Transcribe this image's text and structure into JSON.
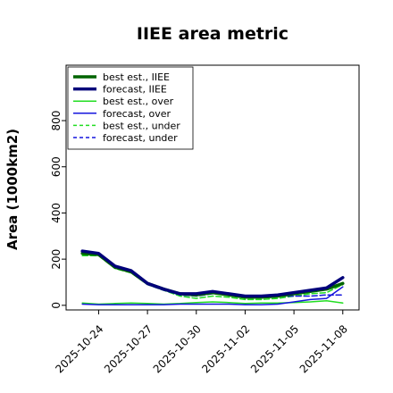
{
  "chart_data": {
    "type": "line",
    "title": "IIEE area metric",
    "xlabel": "",
    "ylabel": "Area (1000km2)",
    "x": [
      "2025-10-23",
      "2025-10-24",
      "2025-10-25",
      "2025-10-26",
      "2025-10-27",
      "2025-10-28",
      "2025-10-29",
      "2025-10-30",
      "2025-10-31",
      "2025-11-01",
      "2025-11-02",
      "2025-11-03",
      "2025-11-04",
      "2025-11-05",
      "2025-11-06",
      "2025-11-07",
      "2025-11-08"
    ],
    "xticks": [
      "2025-10-24",
      "2025-10-27",
      "2025-10-30",
      "2025-11-02",
      "2025-11-05",
      "2025-11-08"
    ],
    "highlight_tick": "2025-10-30",
    "highlight_color": "#228B22",
    "xlim": [
      "2025-10-22",
      "2025-11-09"
    ],
    "ylim": [
      -20,
      1040
    ],
    "yticks": [
      0,
      200,
      400,
      600,
      800
    ],
    "grid": false,
    "legend_position": "top-left",
    "series": [
      {
        "name": "best est., IIEE",
        "color": "#006400",
        "width": 3.5,
        "dash": "solid",
        "values": [
          null,
          null,
          null,
          null,
          null,
          null,
          null,
          null,
          null,
          null,
          null,
          null,
          null,
          null,
          null,
          null,
          null
        ],
        "segments": [
          {
            "x": [
              "2025-10-23",
              "2025-10-24",
              "2025-10-25",
              "2025-10-26",
              "2025-10-27",
              "2025-10-28",
              "2025-10-29",
              "2025-10-30"
            ],
            "y": [
              225,
              220,
              165,
              145,
              95,
              70,
              50,
              45
            ]
          },
          {
            "x": [
              "2025-10-30",
              "2025-10-31",
              "2025-11-01",
              "2025-11-02",
              "2025-11-03",
              "2025-11-04",
              "2025-11-05",
              "2025-11-06",
              "2025-11-07",
              "2025-11-08"
            ],
            "y": [
              45,
              55,
              45,
              35,
              35,
              40,
              50,
              60,
              70,
              95
            ]
          }
        ]
      },
      {
        "name": "forecast, IIEE",
        "color": "#00007a",
        "width": 3.5,
        "dash": "solid",
        "segments": [
          {
            "x": [
              "2025-10-23",
              "2025-10-24",
              "2025-10-25",
              "2025-10-26",
              "2025-10-27",
              "2025-10-28",
              "2025-10-29",
              "2025-10-30",
              "2025-10-31",
              "2025-11-01",
              "2025-11-02",
              "2025-11-03",
              "2025-11-04",
              "2025-11-05",
              "2025-11-06",
              "2025-11-07",
              "2025-11-08"
            ],
            "y": [
              235,
              225,
              170,
              150,
              95,
              70,
              50,
              50,
              60,
              50,
              40,
              40,
              45,
              55,
              65,
              75,
              120
            ]
          }
        ]
      },
      {
        "name": "best est., over",
        "color": "#22dd22",
        "width": 1.5,
        "dash": "solid",
        "segments": [
          {
            "x": [
              "2025-10-23",
              "2025-10-24",
              "2025-10-25",
              "2025-10-26",
              "2025-10-27",
              "2025-10-28",
              "2025-10-29",
              "2025-10-30",
              "2025-10-31",
              "2025-11-01",
              "2025-11-02",
              "2025-11-03",
              "2025-11-04",
              "2025-11-05",
              "2025-11-06",
              "2025-11-07",
              "2025-11-08"
            ],
            "y": [
              10,
              5,
              8,
              10,
              8,
              5,
              8,
              12,
              15,
              12,
              8,
              10,
              10,
              12,
              15,
              20,
              10
            ]
          }
        ]
      },
      {
        "name": "forecast, over",
        "color": "#1515dd",
        "width": 1.5,
        "dash": "solid",
        "segments": [
          {
            "x": [
              "2025-10-23",
              "2025-10-24",
              "2025-10-25",
              "2025-10-26",
              "2025-10-27",
              "2025-10-28",
              "2025-10-29",
              "2025-10-30",
              "2025-10-31",
              "2025-11-01",
              "2025-11-02",
              "2025-11-03",
              "2025-11-04",
              "2025-11-05",
              "2025-11-06",
              "2025-11-07",
              "2025-11-08"
            ],
            "y": [
              5,
              3,
              3,
              3,
              3,
              3,
              5,
              5,
              5,
              5,
              3,
              3,
              5,
              15,
              25,
              30,
              80
            ]
          }
        ]
      },
      {
        "name": "best est., under",
        "color": "#22dd22",
        "width": 1.5,
        "dash": "6,3",
        "segments": [
          {
            "x": [
              "2025-10-23",
              "2025-10-24",
              "2025-10-25",
              "2025-10-26",
              "2025-10-27",
              "2025-10-28",
              "2025-10-29",
              "2025-10-30",
              "2025-10-31",
              "2025-11-01",
              "2025-11-02",
              "2025-11-03",
              "2025-11-04",
              "2025-11-05",
              "2025-11-06",
              "2025-11-07",
              "2025-11-08"
            ],
            "y": [
              215,
              215,
              160,
              140,
              90,
              65,
              40,
              30,
              40,
              35,
              25,
              25,
              30,
              40,
              50,
              55,
              90
            ]
          }
        ]
      },
      {
        "name": "forecast, under",
        "color": "#1515dd",
        "width": 1.5,
        "dash": "6,3",
        "segments": [
          {
            "x": [
              "2025-10-23",
              "2025-10-24",
              "2025-10-25",
              "2025-10-26",
              "2025-10-27",
              "2025-10-28",
              "2025-10-29",
              "2025-10-30",
              "2025-10-31",
              "2025-11-01",
              "2025-11-02",
              "2025-11-03",
              "2025-11-04",
              "2025-11-05",
              "2025-11-06",
              "2025-11-07",
              "2025-11-08"
            ],
            "y": [
              230,
              220,
              165,
              145,
              90,
              65,
              45,
              40,
              50,
              45,
              35,
              35,
              40,
              40,
              40,
              45,
              45
            ]
          }
        ]
      }
    ]
  }
}
